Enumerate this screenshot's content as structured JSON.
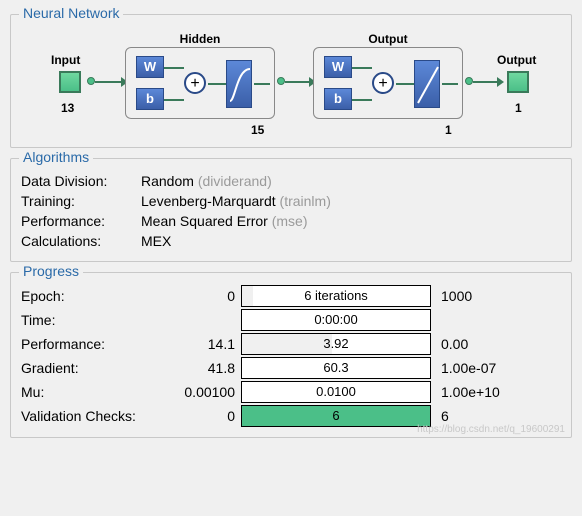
{
  "groups": {
    "nn": "Neural Network",
    "alg": "Algorithms",
    "prog": "Progress"
  },
  "nn": {
    "input_label": "Input",
    "input_count": "13",
    "hidden_label": "Hidden",
    "hidden_count": "15",
    "output_layer_label": "Output",
    "output_layer_count": "1",
    "output_label": "Output",
    "output_count": "1",
    "W": "W",
    "b": "b",
    "plus": "+"
  },
  "alg": [
    {
      "label": "Data Division:",
      "value": "Random",
      "code": "(dividerand)"
    },
    {
      "label": "Training:",
      "value": "Levenberg-Marquardt",
      "code": "(trainlm)"
    },
    {
      "label": "Performance:",
      "value": "Mean Squared Error",
      "code": "(mse)"
    },
    {
      "label": "Calculations:",
      "value": "MEX",
      "code": ""
    }
  ],
  "progress": {
    "colors": {
      "epoch": "#f0f0f0",
      "validation": "#4bbf88",
      "none": "#ffffff"
    },
    "rows": [
      {
        "label": "Epoch:",
        "from": "0",
        "text": "6 iterations",
        "to": "1000",
        "fill_pct": 6,
        "fill": "epoch"
      },
      {
        "label": "Time:",
        "from": "",
        "text": "0:00:00",
        "to": "",
        "fill_pct": 0,
        "fill": "none"
      },
      {
        "label": "Performance:",
        "from": "14.1",
        "text": "3.92",
        "to": "0.00",
        "fill_pct": 48,
        "fill": "epoch"
      },
      {
        "label": "Gradient:",
        "from": "41.8",
        "text": "60.3",
        "to": "1.00e-07",
        "fill_pct": 0,
        "fill": "none"
      },
      {
        "label": "Mu:",
        "from": "0.00100",
        "text": "0.0100",
        "to": "1.00e+10",
        "fill_pct": 0,
        "fill": "none"
      },
      {
        "label": "Validation Checks:",
        "from": "0",
        "text": "6",
        "to": "6",
        "fill_pct": 100,
        "fill": "validation"
      }
    ]
  },
  "watermark": "https://blog.csdn.net/q_19600291"
}
